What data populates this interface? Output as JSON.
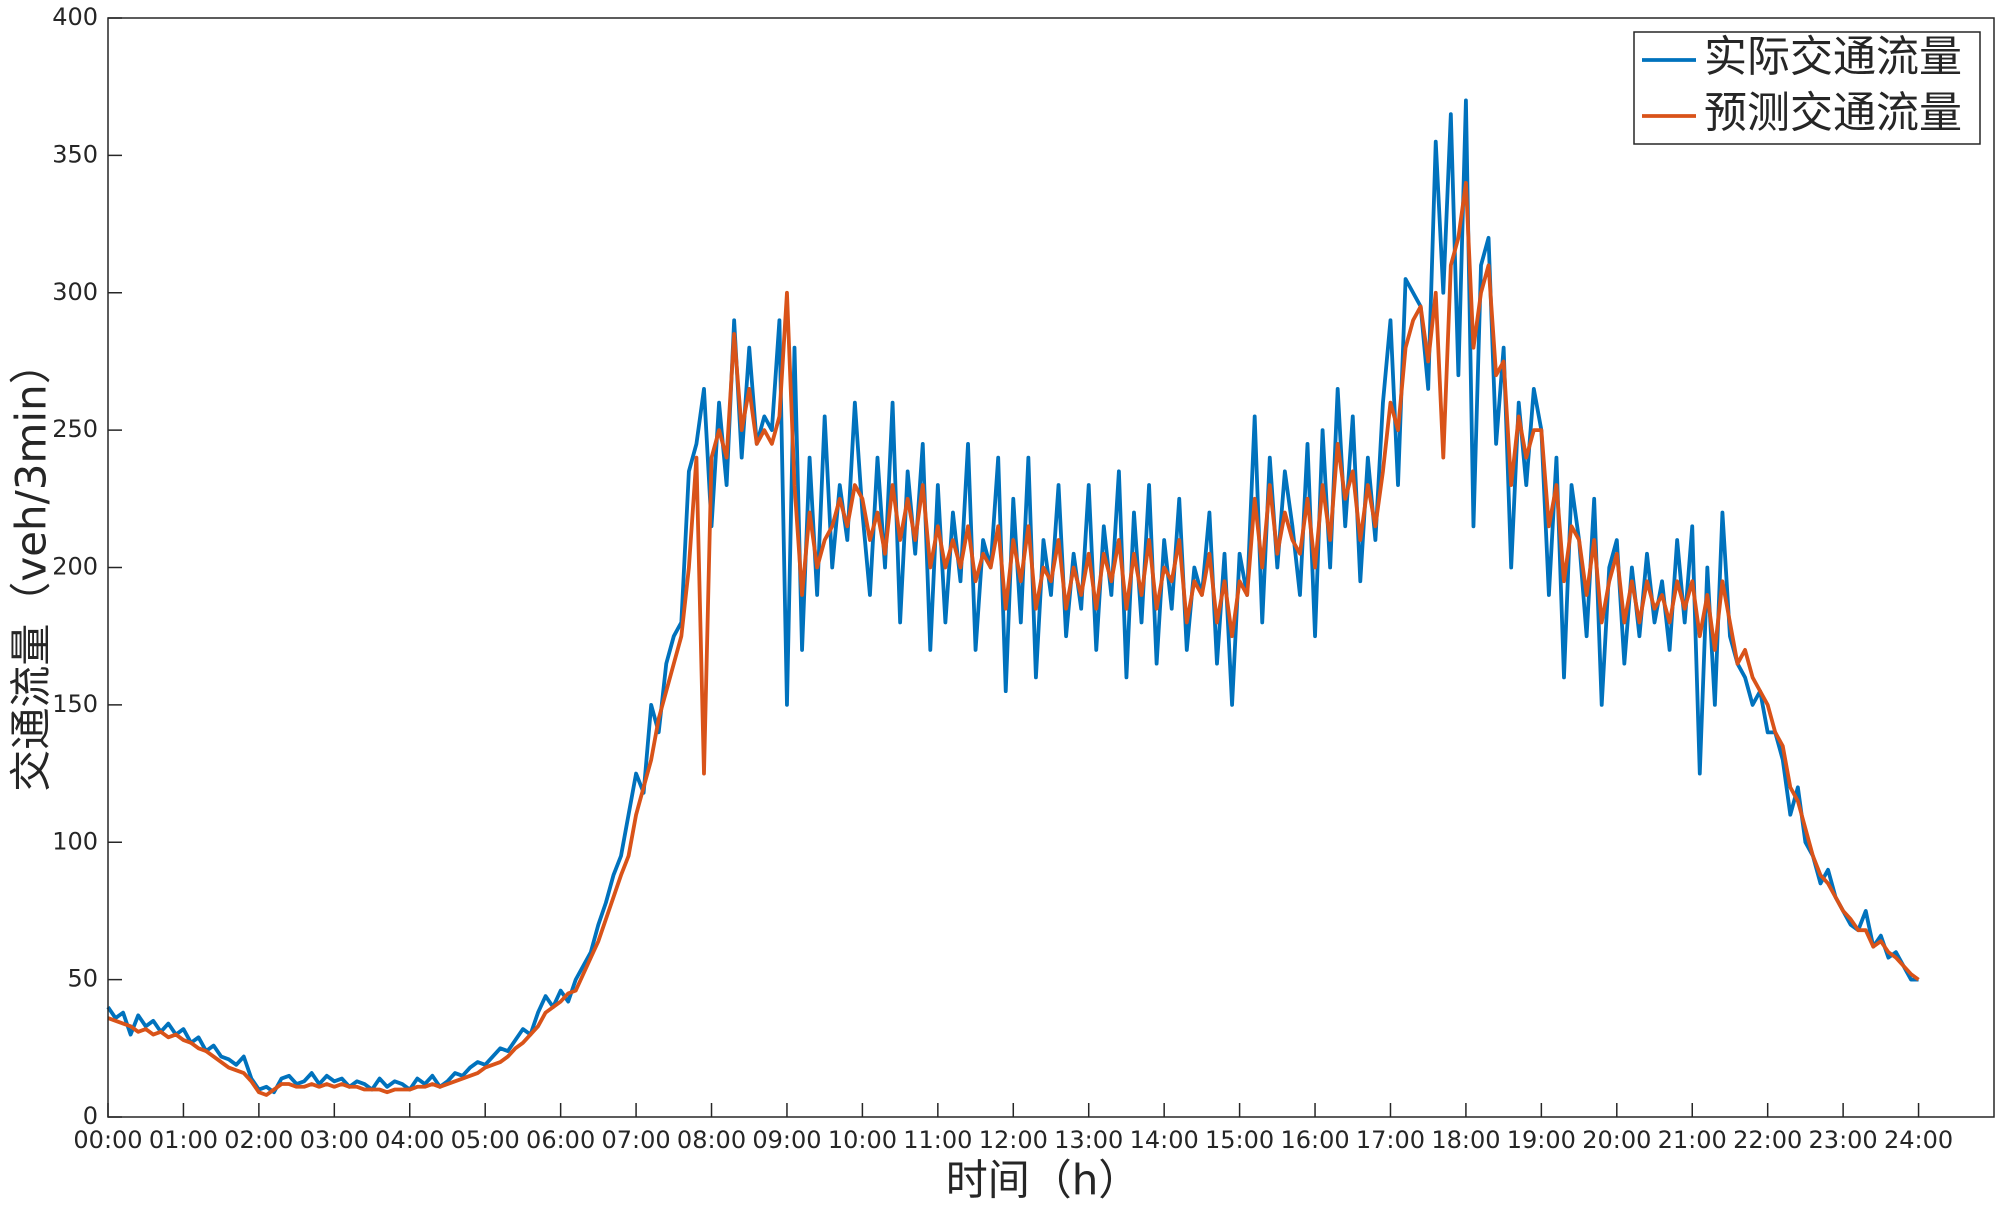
{
  "chart_data": {
    "type": "line",
    "xlabel": "时间（h）",
    "ylabel": "交通流量（veh/3min）",
    "x": [
      0,
      0.1,
      0.2,
      0.3,
      0.4,
      0.5,
      0.6,
      0.7,
      0.8,
      0.9,
      1,
      1.1,
      1.2,
      1.3,
      1.4,
      1.5,
      1.6,
      1.7,
      1.8,
      1.9,
      2,
      2.1,
      2.2,
      2.3,
      2.4,
      2.5,
      2.6,
      2.7,
      2.8,
      2.9,
      3,
      3.1,
      3.2,
      3.3,
      3.4,
      3.5,
      3.6,
      3.7,
      3.8,
      3.9,
      4,
      4.1,
      4.2,
      4.3,
      4.4,
      4.5,
      4.6,
      4.7,
      4.8,
      4.9,
      5,
      5.1,
      5.2,
      5.3,
      5.4,
      5.5,
      5.6,
      5.7,
      5.8,
      5.9,
      6,
      6.1,
      6.2,
      6.3,
      6.4,
      6.5,
      6.6,
      6.7,
      6.8,
      6.9,
      7,
      7.1,
      7.2,
      7.3,
      7.4,
      7.5,
      7.6,
      7.7,
      7.8,
      7.9,
      8,
      8.1,
      8.2,
      8.3,
      8.4,
      8.5,
      8.6,
      8.7,
      8.8,
      8.9,
      9,
      9.1,
      9.2,
      9.3,
      9.4,
      9.5,
      9.6,
      9.7,
      9.8,
      9.9,
      10,
      10.1,
      10.2,
      10.3,
      10.4,
      10.5,
      10.6,
      10.7,
      10.8,
      10.9,
      11,
      11.1,
      11.2,
      11.3,
      11.4,
      11.5,
      11.6,
      11.7,
      11.8,
      11.9,
      12,
      12.1,
      12.2,
      12.3,
      12.4,
      12.5,
      12.6,
      12.7,
      12.8,
      12.9,
      13,
      13.1,
      13.2,
      13.3,
      13.4,
      13.5,
      13.6,
      13.7,
      13.8,
      13.9,
      14,
      14.1,
      14.2,
      14.3,
      14.4,
      14.5,
      14.6,
      14.7,
      14.8,
      14.9,
      15,
      15.1,
      15.2,
      15.3,
      15.4,
      15.5,
      15.6,
      15.7,
      15.8,
      15.9,
      16,
      16.1,
      16.2,
      16.3,
      16.4,
      16.5,
      16.6,
      16.7,
      16.8,
      16.9,
      17,
      17.1,
      17.2,
      17.3,
      17.4,
      17.5,
      17.6,
      17.7,
      17.8,
      17.9,
      18,
      18.1,
      18.2,
      18.3,
      18.4,
      18.5,
      18.6,
      18.7,
      18.8,
      18.9,
      19,
      19.1,
      19.2,
      19.3,
      19.4,
      19.5,
      19.6,
      19.7,
      19.8,
      19.9,
      20,
      20.1,
      20.2,
      20.3,
      20.4,
      20.5,
      20.6,
      20.7,
      20.8,
      20.9,
      21,
      21.1,
      21.2,
      21.3,
      21.4,
      21.5,
      21.6,
      21.7,
      21.8,
      21.9,
      22,
      22.1,
      22.2,
      22.3,
      22.4,
      22.5,
      22.6,
      22.7,
      22.8,
      22.9,
      23,
      23.1,
      23.2,
      23.3,
      23.4,
      23.5,
      23.6,
      23.7,
      23.8,
      23.9,
      24
    ],
    "series": [
      {
        "name": "实际交通流量",
        "color": "#0072BD",
        "values": [
          40,
          36,
          38,
          30,
          37,
          33,
          35,
          31,
          34,
          30,
          32,
          27,
          29,
          24,
          26,
          22,
          21,
          19,
          22,
          14,
          10,
          11,
          9,
          14,
          15,
          12,
          13,
          16,
          12,
          15,
          13,
          14,
          11,
          13,
          12,
          10,
          14,
          11,
          13,
          12,
          10,
          14,
          12,
          15,
          11,
          13,
          16,
          15,
          18,
          20,
          19,
          22,
          25,
          24,
          28,
          32,
          30,
          38,
          44,
          40,
          46,
          42,
          50,
          55,
          60,
          70,
          78,
          88,
          95,
          110,
          125,
          118,
          150,
          140,
          165,
          175,
          180,
          235,
          245,
          265,
          215,
          260,
          230,
          290,
          240,
          280,
          245,
          255,
          250,
          290,
          150,
          280,
          170,
          240,
          190,
          255,
          200,
          230,
          210,
          260,
          220,
          190,
          240,
          200,
          260,
          180,
          235,
          205,
          245,
          170,
          230,
          180,
          220,
          195,
          245,
          170,
          210,
          200,
          240,
          155,
          225,
          180,
          240,
          160,
          210,
          190,
          230,
          175,
          205,
          185,
          230,
          170,
          215,
          190,
          235,
          160,
          220,
          180,
          230,
          165,
          210,
          185,
          225,
          170,
          200,
          190,
          220,
          165,
          205,
          150,
          205,
          190,
          255,
          180,
          240,
          200,
          235,
          215,
          190,
          245,
          175,
          250,
          200,
          265,
          215,
          255,
          195,
          240,
          210,
          260,
          290,
          230,
          305,
          300,
          295,
          265,
          355,
          300,
          365,
          270,
          370,
          215,
          310,
          320,
          245,
          280,
          200,
          260,
          230,
          265,
          250,
          190,
          240,
          160,
          230,
          210,
          175,
          225,
          150,
          200,
          210,
          165,
          200,
          175,
          205,
          180,
          195,
          170,
          210,
          180,
          215,
          125,
          200,
          150,
          220,
          175,
          165,
          160,
          150,
          155,
          140,
          140,
          130,
          110,
          120,
          100,
          95,
          85,
          90,
          80,
          75,
          70,
          68,
          75,
          62,
          66,
          58,
          60,
          55,
          50,
          50
        ]
      },
      {
        "name": "预测交通流量",
        "color": "#D95319",
        "values": [
          36,
          35,
          34,
          33,
          31,
          32,
          30,
          31,
          29,
          30,
          28,
          27,
          25,
          24,
          22,
          20,
          18,
          17,
          16,
          13,
          9,
          8,
          10,
          12,
          12,
          11,
          11,
          12,
          11,
          12,
          11,
          12,
          11,
          11,
          10,
          10,
          10,
          9,
          10,
          10,
          10,
          11,
          11,
          12,
          11,
          12,
          13,
          14,
          15,
          16,
          18,
          19,
          20,
          22,
          25,
          27,
          30,
          33,
          38,
          40,
          42,
          45,
          46,
          52,
          58,
          64,
          72,
          80,
          88,
          95,
          110,
          120,
          130,
          145,
          155,
          165,
          175,
          200,
          240,
          125,
          240,
          250,
          240,
          285,
          250,
          265,
          245,
          250,
          245,
          255,
          300,
          230,
          190,
          220,
          200,
          210,
          215,
          225,
          215,
          230,
          225,
          210,
          220,
          205,
          230,
          210,
          225,
          210,
          230,
          200,
          215,
          200,
          210,
          200,
          215,
          195,
          205,
          200,
          215,
          185,
          210,
          195,
          215,
          185,
          200,
          195,
          210,
          185,
          200,
          190,
          205,
          185,
          205,
          195,
          210,
          185,
          205,
          190,
          210,
          185,
          200,
          195,
          210,
          180,
          195,
          190,
          205,
          180,
          195,
          175,
          195,
          190,
          225,
          200,
          230,
          205,
          220,
          210,
          205,
          225,
          200,
          230,
          210,
          245,
          225,
          235,
          210,
          230,
          215,
          235,
          260,
          250,
          280,
          290,
          295,
          275,
          300,
          240,
          310,
          320,
          340,
          280,
          300,
          310,
          270,
          275,
          230,
          255,
          240,
          250,
          250,
          215,
          230,
          195,
          215,
          210,
          190,
          210,
          180,
          195,
          205,
          180,
          195,
          180,
          195,
          185,
          190,
          180,
          195,
          185,
          195,
          175,
          190,
          170,
          195,
          180,
          165,
          170,
          160,
          155,
          150,
          140,
          135,
          120,
          115,
          105,
          95,
          88,
          85,
          80,
          75,
          72,
          68,
          68,
          62,
          64,
          60,
          58,
          55,
          52,
          50
        ]
      }
    ],
    "xlim": [
      0,
      25
    ],
    "xticks": [
      {
        "value": 0,
        "label": "00:00"
      },
      {
        "value": 1,
        "label": "01:00"
      },
      {
        "value": 2,
        "label": "02:00"
      },
      {
        "value": 3,
        "label": "03:00"
      },
      {
        "value": 4,
        "label": "04:00"
      },
      {
        "value": 5,
        "label": "05:00"
      },
      {
        "value": 6,
        "label": "06:00"
      },
      {
        "value": 7,
        "label": "07:00"
      },
      {
        "value": 8,
        "label": "08:00"
      },
      {
        "value": 9,
        "label": "09:00"
      },
      {
        "value": 10,
        "label": "10:00"
      },
      {
        "value": 11,
        "label": "11:00"
      },
      {
        "value": 12,
        "label": "12:00"
      },
      {
        "value": 13,
        "label": "13:00"
      },
      {
        "value": 14,
        "label": "14:00"
      },
      {
        "value": 15,
        "label": "15:00"
      },
      {
        "value": 16,
        "label": "16:00"
      },
      {
        "value": 17,
        "label": "17:00"
      },
      {
        "value": 18,
        "label": "18:00"
      },
      {
        "value": 19,
        "label": "19:00"
      },
      {
        "value": 20,
        "label": "20:00"
      },
      {
        "value": 21,
        "label": "21:00"
      },
      {
        "value": 22,
        "label": "22:00"
      },
      {
        "value": 23,
        "label": "23:00"
      },
      {
        "value": 24,
        "label": "24:00"
      }
    ],
    "ylim": [
      0,
      400
    ],
    "yticks": [
      0,
      50,
      100,
      150,
      200,
      250,
      300,
      350,
      400
    ],
    "legend": "upper right",
    "grid": false
  }
}
